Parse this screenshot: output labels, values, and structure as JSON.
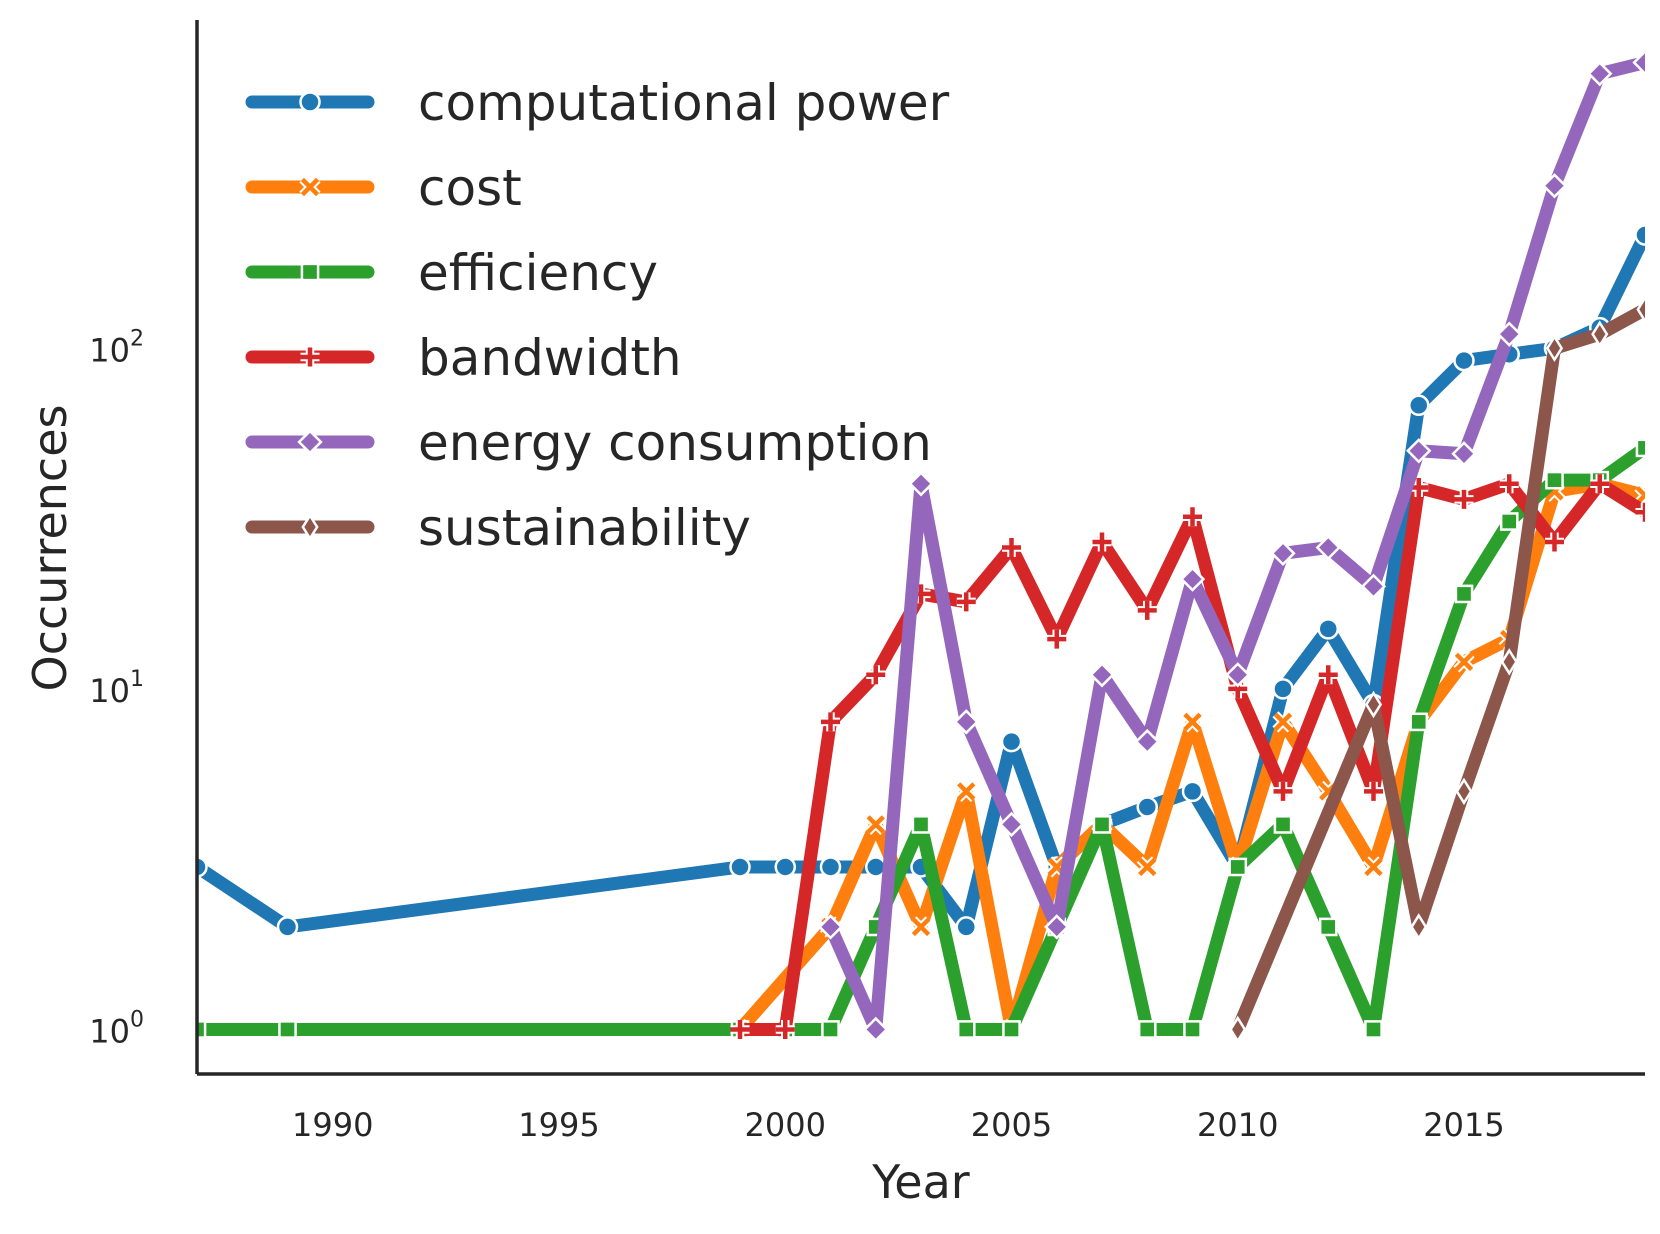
{
  "chart_data": {
    "type": "line",
    "xlabel": "Year",
    "ylabel": "Occurrences",
    "y_scale": "log",
    "x_range": [
      1987,
      2019
    ],
    "y_range": [
      0.74,
      920
    ],
    "x_ticks": [
      1990,
      1995,
      2000,
      2005,
      2010,
      2015
    ],
    "x_tick_labels": [
      "1990",
      "1995",
      "2000",
      "2005",
      "2010",
      "2015"
    ],
    "y_ticks": [
      1,
      10,
      100
    ],
    "y_tick_labels": [
      {
        "base": "10",
        "exp": "0"
      },
      {
        "base": "10",
        "exp": "1"
      },
      {
        "base": "10",
        "exp": "2"
      }
    ],
    "grid": false,
    "legend_position": "top-left",
    "series": [
      {
        "name": "computational power",
        "color": "#1f77b4",
        "marker": "circle",
        "points": [
          [
            1987,
            3
          ],
          [
            1989,
            2
          ],
          [
            1999,
            3
          ],
          [
            2000,
            3
          ],
          [
            2001,
            3
          ],
          [
            2002,
            3
          ],
          [
            2003,
            3
          ],
          [
            2004,
            2
          ],
          [
            2005,
            7
          ],
          [
            2006,
            3
          ],
          [
            2007,
            4
          ],
          [
            2008,
            4.5
          ],
          [
            2009,
            5
          ],
          [
            2010,
            3
          ],
          [
            2011,
            10
          ],
          [
            2012,
            15
          ],
          [
            2013,
            9
          ],
          [
            2014,
            68
          ],
          [
            2015,
            92
          ],
          [
            2016,
            96
          ],
          [
            2017,
            100
          ],
          [
            2018,
            115
          ],
          [
            2019,
            215
          ]
        ]
      },
      {
        "name": "cost",
        "color": "#ff7f0e",
        "marker": "x",
        "points": [
          [
            1987,
            1
          ],
          [
            1989,
            1
          ],
          [
            1999,
            1
          ],
          [
            2001,
            2
          ],
          [
            2002,
            4
          ],
          [
            2003,
            2
          ],
          [
            2004,
            5
          ],
          [
            2005,
            1
          ],
          [
            2006,
            3
          ],
          [
            2007,
            4
          ],
          [
            2008,
            3
          ],
          [
            2009,
            8
          ],
          [
            2010,
            3
          ],
          [
            2011,
            8
          ],
          [
            2012,
            5
          ],
          [
            2013,
            3
          ],
          [
            2014,
            8
          ],
          [
            2015,
            12
          ],
          [
            2016,
            14
          ],
          [
            2017,
            38
          ],
          [
            2018,
            40
          ],
          [
            2019,
            37
          ]
        ]
      },
      {
        "name": "efficiency",
        "color": "#2ca02c",
        "marker": "square",
        "points": [
          [
            1987,
            1
          ],
          [
            1989,
            1
          ],
          [
            1999,
            1
          ],
          [
            2000,
            1
          ],
          [
            2001,
            1
          ],
          [
            2002,
            2
          ],
          [
            2003,
            4
          ],
          [
            2004,
            1
          ],
          [
            2005,
            1
          ],
          [
            2006,
            2
          ],
          [
            2007,
            4
          ],
          [
            2008,
            1
          ],
          [
            2009,
            1
          ],
          [
            2010,
            3
          ],
          [
            2011,
            4
          ],
          [
            2012,
            2
          ],
          [
            2013,
            1
          ],
          [
            2014,
            8
          ],
          [
            2015,
            19
          ],
          [
            2016,
            31
          ],
          [
            2017,
            41
          ],
          [
            2018,
            41
          ],
          [
            2019,
            51
          ]
        ]
      },
      {
        "name": "bandwidth",
        "color": "#d62728",
        "marker": "plus",
        "points": [
          [
            1999,
            1
          ],
          [
            2000,
            1
          ],
          [
            2001,
            8
          ],
          [
            2002,
            11
          ],
          [
            2003,
            19
          ],
          [
            2004,
            18
          ],
          [
            2005,
            26
          ],
          [
            2006,
            14
          ],
          [
            2007,
            27
          ],
          [
            2008,
            17
          ],
          [
            2009,
            32
          ],
          [
            2010,
            10
          ],
          [
            2011,
            5
          ],
          [
            2012,
            11
          ],
          [
            2013,
            5
          ],
          [
            2014,
            39
          ],
          [
            2015,
            36
          ],
          [
            2016,
            40
          ],
          [
            2017,
            27
          ],
          [
            2018,
            40
          ],
          [
            2019,
            33
          ]
        ]
      },
      {
        "name": "energy consumption",
        "color": "#9467bd",
        "marker": "diamond",
        "points": [
          [
            2001,
            2
          ],
          [
            2002,
            1
          ],
          [
            2003,
            40
          ],
          [
            2004,
            8
          ],
          [
            2005,
            4
          ],
          [
            2006,
            2
          ],
          [
            2007,
            11
          ],
          [
            2008,
            7
          ],
          [
            2009,
            21
          ],
          [
            2010,
            11
          ],
          [
            2011,
            25
          ],
          [
            2012,
            26
          ],
          [
            2013,
            20
          ],
          [
            2014,
            50
          ],
          [
            2015,
            49
          ],
          [
            2016,
            110
          ],
          [
            2017,
            300
          ],
          [
            2018,
            640
          ],
          [
            2019,
            690
          ]
        ]
      },
      {
        "name": "sustainability",
        "color": "#8c564b",
        "marker": "thin_diamond",
        "points": [
          [
            2010,
            1
          ],
          [
            2013,
            9
          ],
          [
            2014,
            2
          ],
          [
            2015,
            5
          ],
          [
            2016,
            12
          ],
          [
            2017,
            100
          ],
          [
            2018,
            110
          ],
          [
            2019,
            130
          ]
        ]
      }
    ]
  }
}
